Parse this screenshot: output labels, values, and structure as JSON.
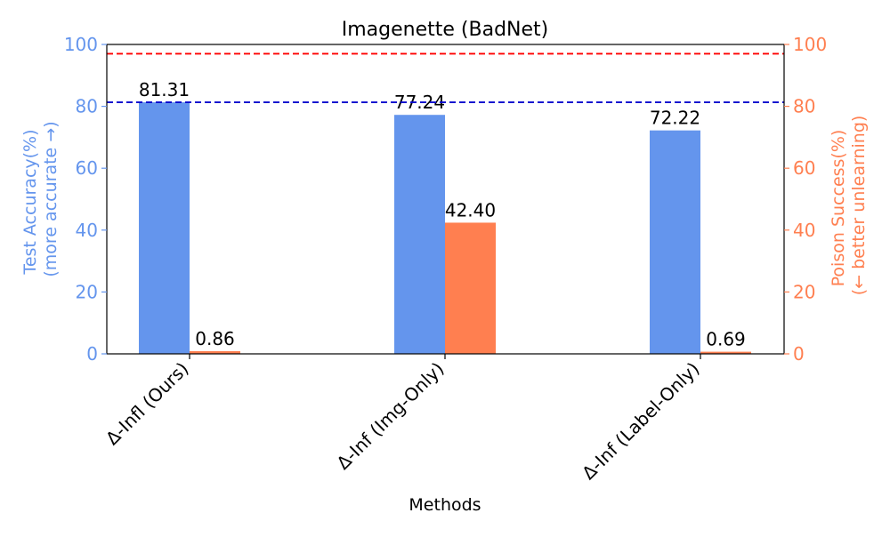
{
  "chart_data": {
    "type": "bar",
    "title": "Imagenette (BadNet)",
    "xlabel": "Methods",
    "ylabel_left": [
      "Test Accuracy(%)",
      "(more accurate →)"
    ],
    "ylabel_right": [
      "Poison Success(%)",
      "(← better unlearning)"
    ],
    "categories": [
      "Δ-Infl (Ours)",
      "Δ-Inf (Img-Only)",
      "Δ-Inf (Label-Only)"
    ],
    "series": [
      {
        "axis": "left",
        "color": "#6495ED",
        "values": [
          81.31,
          77.24,
          72.22
        ],
        "labels": [
          "81.31",
          "77.24",
          "72.22"
        ]
      },
      {
        "axis": "right",
        "color": "#FF7F50",
        "values": [
          0.86,
          42.4,
          0.69
        ],
        "labels": [
          "0.86",
          "42.40",
          "0.69"
        ]
      }
    ],
    "ylim": [
      0,
      100
    ],
    "yticks": [
      "0",
      "20",
      "40",
      "60",
      "80",
      "100"
    ],
    "reference_lines": [
      {
        "value": 81.31,
        "color": "#0000CD",
        "style": "dashed"
      },
      {
        "value": 97,
        "color": "#FF0000",
        "style": "dashed"
      }
    ],
    "left_axis_color": "#6495ED",
    "right_axis_color": "#FF7F50",
    "grid": false
  }
}
